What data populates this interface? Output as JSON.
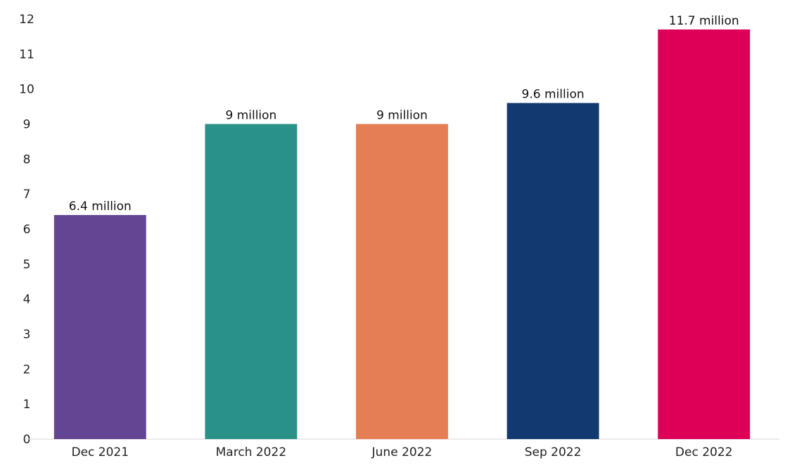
{
  "chart_data": {
    "type": "bar",
    "categories": [
      "Dec 2021",
      "March 2022",
      "June 2022",
      "Sep 2022",
      "Dec 2022"
    ],
    "values": [
      6.4,
      9,
      9,
      9.6,
      11.7
    ],
    "data_labels": [
      "6.4 million",
      "9 million",
      "9 million",
      "9.6 million",
      "11.7 million"
    ],
    "colors": [
      "#634593",
      "#2a9188",
      "#e67e55",
      "#133a70",
      "#de0057"
    ],
    "ylim": [
      0,
      12
    ],
    "y_ticks": [
      "0",
      "1",
      "2",
      "3",
      "4",
      "5",
      "6",
      "7",
      "8",
      "9",
      "10",
      "11",
      "12"
    ],
    "grid": false,
    "legend": "none"
  }
}
